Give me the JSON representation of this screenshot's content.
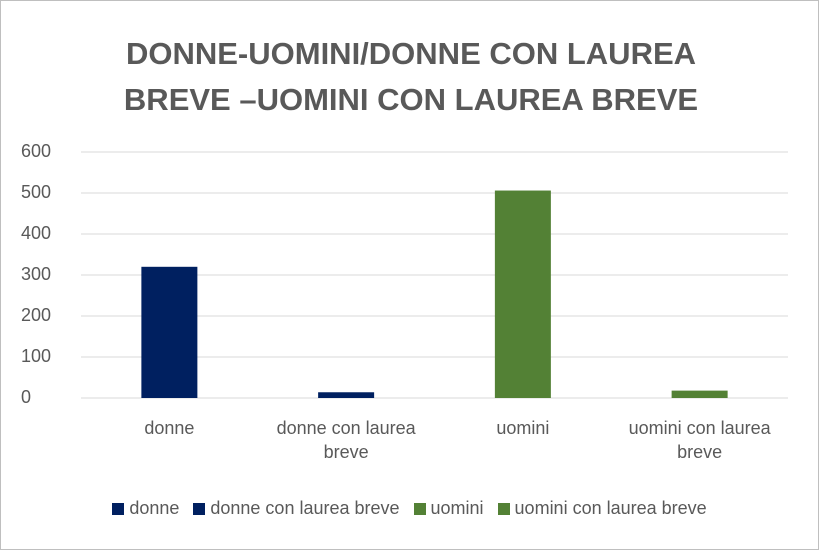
{
  "chart_data": {
    "type": "bar",
    "title": "DONNE-UOMINI/DONNE CON LAUREA BREVE –UOMINI CON LAUREA BREVE",
    "categories": [
      "donne",
      "donne con laurea breve",
      "uomini",
      "uomini con laurea breve"
    ],
    "values": [
      320,
      14,
      506,
      18
    ],
    "colors": [
      "#002060",
      "#002060",
      "#538135",
      "#538135"
    ],
    "ylim": [
      0,
      600
    ],
    "yticks": [
      0,
      100,
      200,
      300,
      400,
      500,
      600
    ],
    "grid": true,
    "legend": "bottom"
  }
}
